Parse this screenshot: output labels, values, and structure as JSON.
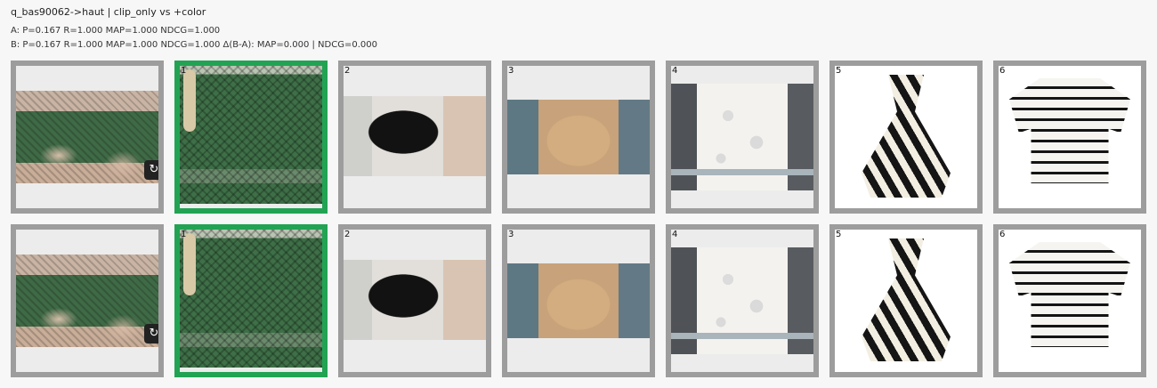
{
  "header": {
    "title": "q_bas90062->haut | clip_only vs +color",
    "metrics_a": "A: P=0.167  R=1.000  MAP=1.000  NDCG=1.000",
    "metrics_b": "B: P=0.167  R=1.000  MAP=1.000  NDCG=1.000  Δ(B-A): MAP=0.000 | NDCG=0.000"
  },
  "query": {
    "badge_icon": "rotate-icon",
    "badge_glyph": "↻"
  },
  "rows": [
    {
      "name": "A",
      "results": [
        {
          "rank": "1",
          "relevant": true,
          "thumb": "green-crochet-top"
        },
        {
          "rank": "2",
          "relevant": false,
          "thumb": "black-crop-tee"
        },
        {
          "rank": "3",
          "relevant": false,
          "thumb": "beige-cardigan"
        },
        {
          "rank": "4",
          "relevant": false,
          "thumb": "white-lace-shirt"
        },
        {
          "rank": "5",
          "relevant": false,
          "thumb": "zebra-halter-top"
        },
        {
          "rank": "6",
          "relevant": false,
          "thumb": "striped-cardigan"
        }
      ]
    },
    {
      "name": "B",
      "results": [
        {
          "rank": "1",
          "relevant": true,
          "thumb": "green-crochet-top"
        },
        {
          "rank": "2",
          "relevant": false,
          "thumb": "black-crop-tee"
        },
        {
          "rank": "3",
          "relevant": false,
          "thumb": "beige-cardigan"
        },
        {
          "rank": "4",
          "relevant": false,
          "thumb": "white-lace-shirt"
        },
        {
          "rank": "5",
          "relevant": false,
          "thumb": "zebra-halter-top"
        },
        {
          "rank": "6",
          "relevant": false,
          "thumb": "striped-cardigan"
        }
      ]
    }
  ],
  "colors": {
    "relevant_border": "#22a354",
    "default_border": "#9d9d9d"
  }
}
